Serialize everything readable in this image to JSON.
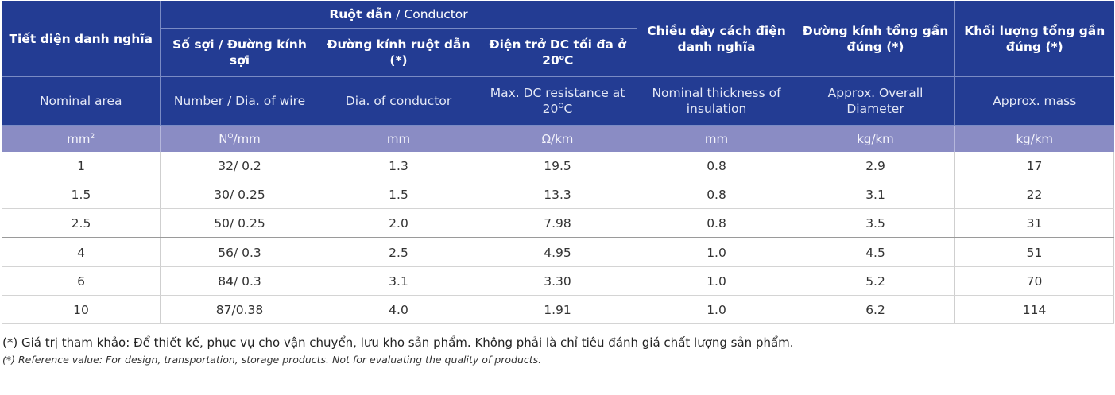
{
  "columns": [
    {
      "vi": "Tiết diện danh nghĩa",
      "en": "Nominal area",
      "unit": "mm",
      "unit_sup": "2"
    },
    {
      "vi": "Số sợi / Đường kính sợi",
      "en": "Number / Dia. of wire",
      "unit": "N",
      "unit_sup": "O",
      "unit_tail": "/mm"
    },
    {
      "vi": "Đường kính ruột dẫn (*)",
      "en": "Dia. of conductor",
      "unit": "mm"
    },
    {
      "vi": "Điện trở DC tối đa ở 20",
      "vi_sup": "o",
      "vi_tail": "C",
      "en": "Max. DC resistance at 20",
      "en_sup": "O",
      "en_tail": "C",
      "unit": "Ω/km"
    },
    {
      "vi": "Chiều dày cách điện danh nghĩa",
      "en": "Nominal thickness of insulation",
      "unit": "mm"
    },
    {
      "vi": "Đường kính tổng gần đúng (*)",
      "en": "Approx. Overall Diameter",
      "unit": "kg/km"
    },
    {
      "vi": "Khối lượng tổng gần đúng (*)",
      "en": "Approx. mass",
      "unit": "kg/km"
    }
  ],
  "group_header": {
    "vi": "Ruột dẫn",
    "en": " / Conductor"
  },
  "rows": [
    [
      "1",
      "32/ 0.2",
      "1.3",
      "19.5",
      "0.8",
      "2.9",
      "17"
    ],
    [
      "1.5",
      "30/ 0.25",
      "1.5",
      "13.3",
      "0.8",
      "3.1",
      "22"
    ],
    [
      "2.5",
      "50/ 0.25",
      "2.0",
      "7.98",
      "0.8",
      "3.5",
      "31"
    ],
    [
      "4",
      "56/ 0.3",
      "2.5",
      "4.95",
      "1.0",
      "4.5",
      "51"
    ],
    [
      "6",
      "84/ 0.3",
      "3.1",
      "3.30",
      "1.0",
      "5.2",
      "70"
    ],
    [
      "10",
      "87/0.38",
      "4.0",
      "1.91",
      "1.0",
      "6.2",
      "114"
    ]
  ],
  "notes": {
    "vi": "(*) Giá trị tham khảo: Để thiết kế, phục vụ cho vận chuyển, lưu kho sản phẩm. Không phải là chỉ tiêu đánh giá chất lượng sản phẩm.",
    "en": "(*) Reference value: For design, transportation, storage products. Not for evaluating the quality of products."
  }
}
